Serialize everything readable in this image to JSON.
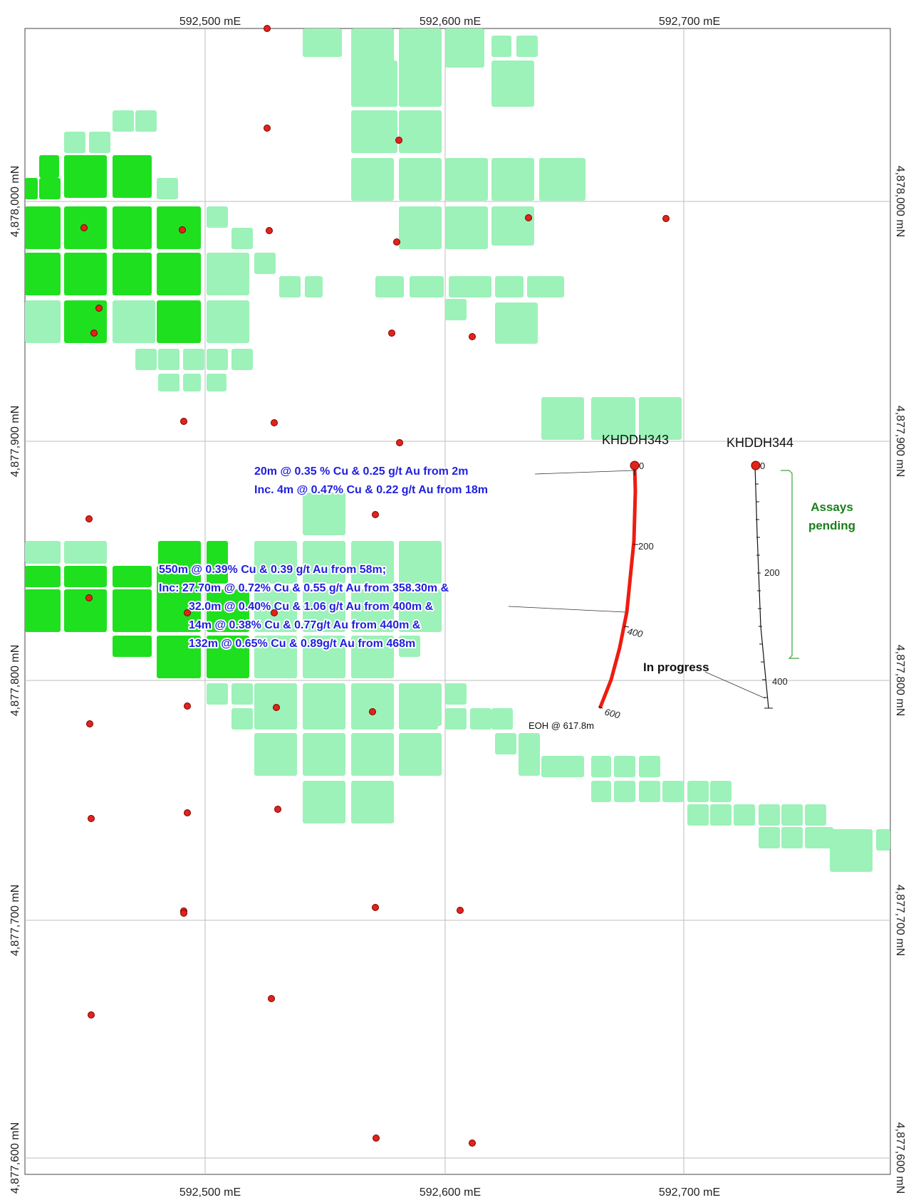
{
  "axes": {
    "easting_labels": [
      "592,500 mE",
      "592,600 mE",
      "592,700 mE"
    ],
    "northing_labels": [
      "4,878,000 mN",
      "4,877,900 mN",
      "4,877,800 mN",
      "4,877,700 mN",
      "4,877,600 mN"
    ]
  },
  "drillholes": [
    {
      "name": "KHDDH343",
      "depth_ticks": [
        "0",
        "200",
        "400",
        "600"
      ],
      "end_of_hole": "EOH @ 617.8m",
      "trace_color": "#ee1c10"
    },
    {
      "name": "KHDDH344",
      "depth_ticks": [
        "0",
        "200",
        "400"
      ],
      "status": "In progress",
      "note": [
        "Assays",
        "pending"
      ],
      "trace_color": "#111111"
    }
  ],
  "intercepts": {
    "shallow": [
      "20m @ 0.35 % Cu & 0.25 g/t Au from 2m",
      "Inc. 4m @ 0.47% Cu & 0.22 g/t Au from 18m"
    ],
    "main": [
      "550m @ 0.39% Cu & 0.39 g/t Au from 58m;",
      "Inc: 27.70m @ 0.72% Cu & 0.55 g/t Au from 358.30m &",
      "32.0m @ 0.40% Cu & 1.06 g/t Au from 400m &",
      "14m @ 0.38% Cu & 0.77g/t Au from 440m &",
      "132m @ 0.65% Cu & 0.89g/t Au from 468m"
    ]
  },
  "colors": {
    "block_light": "#9cf2b8",
    "block_dark": "#1fe01f",
    "collar": "#e2231a",
    "grid": "#b9b9b9",
    "annotation": "#1f1fdf",
    "assays_note": "#1a7f1a"
  }
}
